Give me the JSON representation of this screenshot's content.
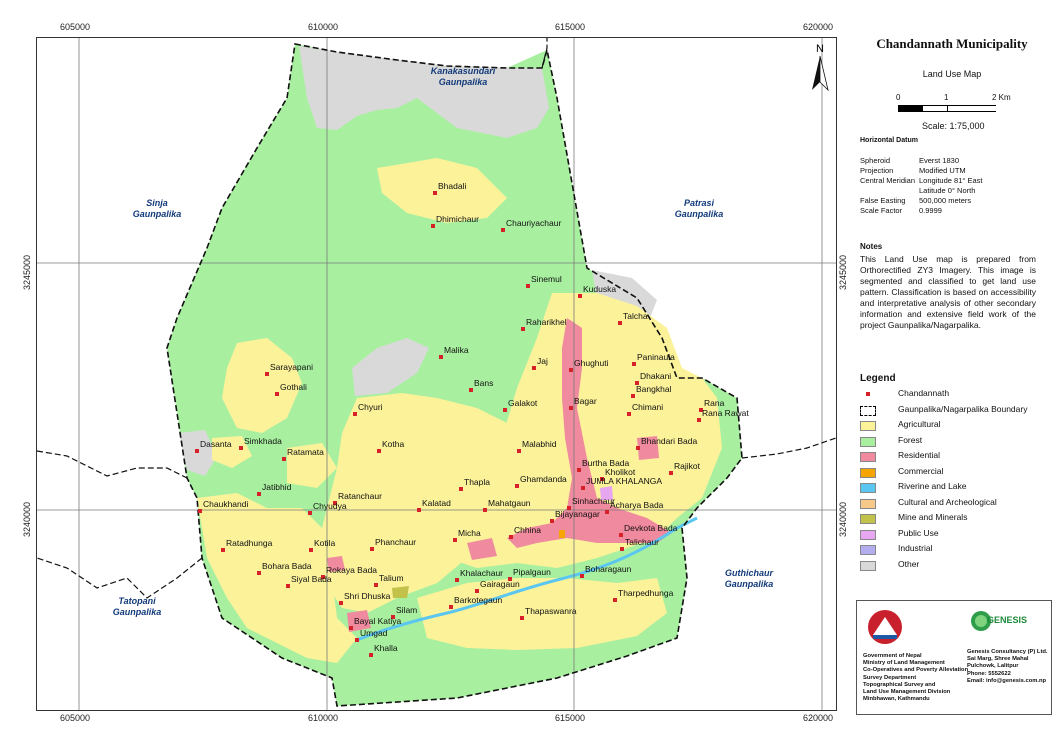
{
  "coords": {
    "eastings": [
      "605000",
      "610000",
      "615000",
      "620000"
    ],
    "northings": [
      "3245000",
      "3240000"
    ]
  },
  "map": {
    "north": "N",
    "neighbors": [
      {
        "line1": "Kanakasundari",
        "line2": "Gaunpalika"
      },
      {
        "line1": "Sinja",
        "line2": "Gaunpalika"
      },
      {
        "line1": "Patrasi",
        "line2": "Gaunpalika"
      },
      {
        "line1": "Guthichaur",
        "line2": "Gaunpalika"
      },
      {
        "line1": "Tatopani",
        "line2": "Gaunpalika"
      }
    ],
    "places": [
      "Bhadali",
      "Dhimichaur",
      "Chauriyachaur",
      "Sinemul",
      "Kuduska",
      "Talcha",
      "Raharikhel",
      "Malika",
      "Jaj",
      "Ghughuti",
      "Paninaula",
      "Dhakani",
      "Sarayapani",
      "Bangkhal",
      "Gothali",
      "Bans",
      "Galakot",
      "Bagar",
      "Chimani",
      "Rana",
      "Rana Rawat",
      "Chyuri",
      "Dasanta",
      "Simkhada",
      "Kotha",
      "Ratamata",
      "Malabhid",
      "Burtha Bada",
      "Bhandari Bada",
      "Kholikot",
      "Rajikot",
      "Jatibhid",
      "Thapla",
      "Ghamdanda",
      "JUMLA KHALANGA",
      "Ratanchaur",
      "Chaukhandi",
      "Kalatad",
      "Mahatgaun",
      "Sinhachaur",
      "Acharya Bada",
      "Chyudya",
      "Bijayanagar",
      "Devkota Bada",
      "Chhina",
      "Ratadhunga",
      "Kotila",
      "Micha",
      "Talichaur",
      "Phanchaur",
      "Bohara Bada",
      "Rokaya Bada",
      "Khalachaur",
      "Pipalgaun",
      "Boharagaun",
      "Siyal Bada",
      "Talium",
      "Gairagaun",
      "Shri Dhuska",
      "Barkotegaun",
      "Silam",
      "Thapaswanra",
      "Tharpedhunga",
      "Bayal Katiya",
      "Umgad",
      "Khalla"
    ]
  },
  "sidebar": {
    "title": "Chandannath Municipality",
    "subtitle": "Land Use Map",
    "scale_ticks": [
      "0",
      "1",
      "2 Km"
    ],
    "scale_text": "Scale: 1:75,000",
    "datum_heading": "Horizontal Datum",
    "datum": [
      {
        "k": "Spheroid",
        "v": "Everst 1830"
      },
      {
        "k": "Projection",
        "v": "Modified UTM"
      },
      {
        "k": "Central Meridian",
        "v": "Longitude 81° East"
      },
      {
        "k": "",
        "v": "Latitude 0° North"
      },
      {
        "k": "False Easting",
        "v": "500,000 meters"
      },
      {
        "k": "Scale Factor",
        "v": "0.9999"
      }
    ],
    "notes_heading": "Notes",
    "notes": "This Land Use map is prepared from Orthorectified ZY3 Imagery. This image is segmented and classified to get land use pattern. Classification is based on accessibility and interpretative analysis of other secondary information and extensive field work of the project Gaunpalika/Nagarpalika.",
    "legend_heading": "Legend",
    "legend": [
      {
        "label": "Chandannath",
        "color": "#d6202a"
      },
      {
        "label": "Gaunpalika/Nagarpalika Boundary",
        "color": "#000000"
      },
      {
        "label": "Agricultural",
        "color": "#fbf29a"
      },
      {
        "label": "Forest",
        "color": "#a8f0a0"
      },
      {
        "label": "Residential",
        "color": "#f08a9e"
      },
      {
        "label": "Commercial",
        "color": "#f5a400"
      },
      {
        "label": "Riverine and Lake",
        "color": "#5bc7f0"
      },
      {
        "label": "Cultural and Archeological",
        "color": "#f7c98a"
      },
      {
        "label": "Mine and Minerals",
        "color": "#c2c24a"
      },
      {
        "label": "Public Use",
        "color": "#e6a6f0"
      },
      {
        "label": "Industrial",
        "color": "#b4aef0"
      },
      {
        "label": "Other",
        "color": "#d9d9d9"
      }
    ],
    "govt": [
      "Government of Nepal",
      "Ministry of Land Management",
      "Co-Operatives and Poverty Alleviation",
      "Survey Department",
      "Topographical Survey and",
      "Land Use Management Division",
      "Minbhawan, Kathmandu"
    ],
    "company_logo": "GENESIS",
    "company": [
      "Genesis Consultancy (P) Ltd.",
      "Sai Marg, Shree Mahal",
      "Pulchowk, Lalitpur",
      "Phone: 5552622",
      "Email: info@genesis.com.np"
    ]
  }
}
